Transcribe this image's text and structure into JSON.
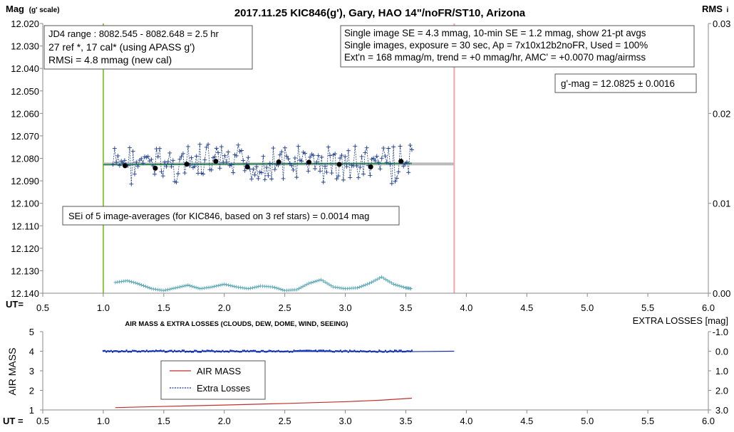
{
  "chart_data": [
    {
      "type": "scatter",
      "title": "2017.11.25  KIC846(g'),  Gary, HAO  14\"/noFR/ST10,  Arizona",
      "ylabel": "Mag",
      "ylabel_sub": "(g' scale)",
      "y2label": "RMS",
      "y2label_sub": "i",
      "xlabel": "UT=",
      "xlim": [
        0.5,
        6.0
      ],
      "ylim": [
        12.02,
        12.14
      ],
      "y_reversed": true,
      "y2lim": [
        0.0,
        0.03
      ],
      "x_ticks": [
        "0.5",
        "1.0",
        "1.5",
        "2.0",
        "2.5",
        "3.0",
        "3.5",
        "4.0",
        "4.5",
        "5.0",
        "5.5",
        "6.0"
      ],
      "y_ticks": [
        "12.020",
        "12.030",
        "12.040",
        "12.050",
        "12.060",
        "12.070",
        "12.080",
        "12.090",
        "12.100",
        "12.110",
        "12.120",
        "12.130",
        "12.140"
      ],
      "y2_ticks": [
        "0.03",
        "0.02",
        "0.01",
        "0.00"
      ],
      "vertical_lines": [
        {
          "x": 1.0,
          "color": "#8dc63f"
        },
        {
          "x": 3.9,
          "color": "#f4a6a6"
        }
      ],
      "fit_line": {
        "x": [
          1.0,
          3.9
        ],
        "y": [
          12.0825,
          12.0825
        ],
        "color": "#bbbbbb"
      },
      "trend_line": {
        "x": [
          1.0,
          3.55
        ],
        "y": [
          12.0828,
          12.0822
        ],
        "color": "#2e8b57"
      },
      "averages": {
        "x": [
          1.18,
          1.43,
          1.69,
          1.93,
          2.19,
          2.45,
          2.7,
          2.95,
          3.21,
          3.46
        ],
        "y": [
          12.0833,
          12.0844,
          12.0826,
          12.0813,
          12.0838,
          12.0816,
          12.0817,
          12.0827,
          12.0838,
          12.0813
        ],
        "color": "#000000"
      },
      "series_color": "#1f3f8f",
      "rms_series_color": "#5aa7b5",
      "rms_curve": {
        "x": [
          1.1,
          1.2,
          1.3,
          1.4,
          1.5,
          1.6,
          1.7,
          1.8,
          1.9,
          2.0,
          2.1,
          2.2,
          2.3,
          2.4,
          2.5,
          2.6,
          2.7,
          2.8,
          2.9,
          3.0,
          3.1,
          3.2,
          3.3,
          3.4,
          3.5,
          3.55
        ],
        "y": [
          0.0012,
          0.0014,
          0.001,
          0.0005,
          0.0003,
          0.0006,
          0.0009,
          0.0005,
          0.0007,
          0.001,
          0.0007,
          0.0005,
          0.0008,
          0.0007,
          0.0003,
          0.0004,
          0.0011,
          0.0015,
          0.0007,
          0.0005,
          0.0006,
          0.0011,
          0.0018,
          0.001,
          0.0006,
          0.0005
        ]
      },
      "annotations": {
        "range": "JD4 range : 8082.545 - 8082.648 = 2.5  hr",
        "refs": "27 ref *, 17 cal* (using APASS g')",
        "rmsi": "RMSi = 4.8 mmag (new cal)",
        "se": "Single image SE = 4.3 mmag, 10-min SE = 1.2 mmag, show  21-pt avgs",
        "images": "Single images, exposure = 30 sec, Ap = 7x10x12b2noFR,  Used = 100%",
        "extn": "Ext'n = 168 mmag/m, trend =  +0 mmag/hr, AMC' = +0.0070 mag/airmss",
        "gmag": "g'-mag = 12.0825 ± 0.0016",
        "sei": "SEi of 5 image-averages (for KIC846, based on 3 ref stars) = 0.0014  mag"
      }
    },
    {
      "type": "line",
      "title": "AIR MASS & EXTRA LOSSES (CLOUDS, DEW, DOME, WIND, SEEING)",
      "ylabel": "AIR MASS",
      "y2label": "EXTRA LOSSES [mag]",
      "xlabel": "UT =",
      "xlim": [
        0.5,
        6.0
      ],
      "ylim": [
        1,
        5
      ],
      "y2lim": [
        -1.0,
        3.0
      ],
      "y2_reversed": true,
      "x_ticks": [
        "0.5",
        "1.0",
        "1.5",
        "2.0",
        "2.5",
        "3.0",
        "3.5",
        "4.0",
        "4.5",
        "5.0",
        "5.5",
        "6.0"
      ],
      "y_ticks": [
        "5",
        "4",
        "3",
        "2",
        "1"
      ],
      "y2_ticks": [
        "-1.0",
        "0.0",
        "1.0",
        "2.0",
        "3.0"
      ],
      "legend": [
        "AIR MASS",
        "Extra Losses"
      ],
      "legend_placement": "center-left",
      "series": [
        {
          "name": "AIR MASS",
          "color": "#c0302a",
          "x": [
            1.1,
            1.5,
            2.0,
            2.5,
            3.0,
            3.3,
            3.55
          ],
          "y": [
            1.12,
            1.18,
            1.25,
            1.33,
            1.42,
            1.5,
            1.6
          ]
        },
        {
          "name": "Extra Losses",
          "color": "#1030b0",
          "x": [
            1.0,
            3.55,
            3.9
          ],
          "y": [
            0.0,
            0.02,
            0.0
          ]
        }
      ]
    }
  ]
}
